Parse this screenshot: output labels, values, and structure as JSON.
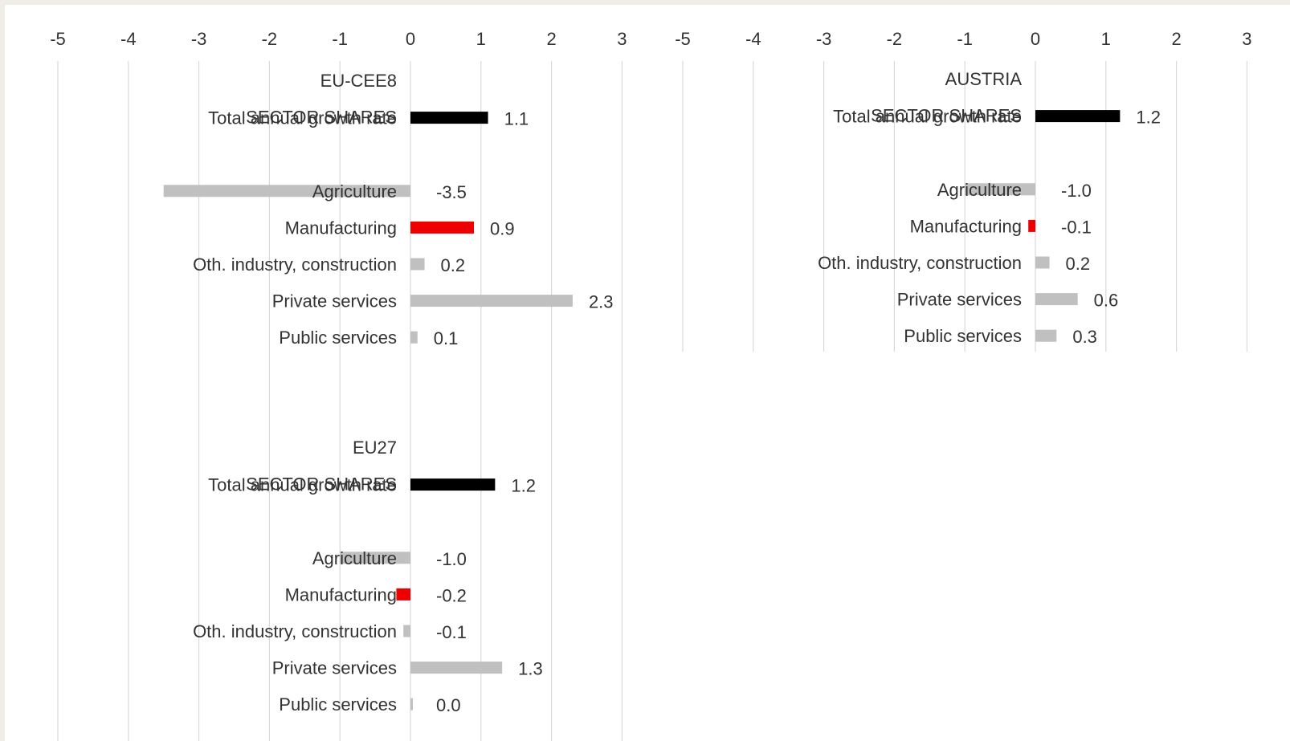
{
  "colors": {
    "total": "#000000",
    "manufacturing": "#ee0000",
    "sector": "#c0c0c0",
    "grid": "#d9d9d9",
    "text": "#333333",
    "background": "#efede6",
    "panel": "#ffffff"
  },
  "chart_data": [
    {
      "type": "bar",
      "orientation": "horizontal",
      "title": "EU-CEE8",
      "section_label": "SECTOR SHARES",
      "xlim": [
        -5,
        3
      ],
      "xticks": [
        "-5",
        "-4",
        "-3",
        "-2",
        "-1",
        "0",
        "1",
        "2",
        "3"
      ],
      "grid": true,
      "categories": [
        "Total annual growth rate",
        "Agriculture",
        "Manufacturing",
        "Oth. industry, construction",
        "Private services",
        "Public services"
      ],
      "values": [
        1.1,
        -3.5,
        0.9,
        0.2,
        2.3,
        0.1
      ],
      "labels": [
        "1.1",
        "-3.5",
        "0.9",
        "0.2",
        "2.3",
        "0.1"
      ],
      "bar_colors": [
        "total",
        "sector",
        "manufacturing",
        "sector",
        "sector",
        "sector"
      ]
    },
    {
      "type": "bar",
      "orientation": "horizontal",
      "title": "AUSTRIA",
      "section_label": "SECTOR SHARES",
      "xlim": [
        -5,
        3
      ],
      "xticks": [
        "-5",
        "-4",
        "-3",
        "-2",
        "-1",
        "0",
        "1",
        "2",
        "3"
      ],
      "grid": true,
      "categories": [
        "Total annual growth rate",
        "Agriculture",
        "Manufacturing",
        "Oth. industry, construction",
        "Private services",
        "Public services"
      ],
      "values": [
        1.2,
        -1.0,
        -0.1,
        0.2,
        0.6,
        0.3
      ],
      "labels": [
        "1.2",
        "-1.0",
        "-0.1",
        "0.2",
        "0.6",
        "0.3"
      ],
      "bar_colors": [
        "total",
        "sector",
        "manufacturing",
        "sector",
        "sector",
        "sector"
      ]
    },
    {
      "type": "bar",
      "orientation": "horizontal",
      "title": "EU27",
      "section_label": "SECTOR SHARES",
      "xlim": [
        -5,
        3
      ],
      "grid": true,
      "categories": [
        "Total annual growth rate",
        "Agriculture",
        "Manufacturing",
        "Oth. industry, construction",
        "Private services",
        "Public services"
      ],
      "values": [
        1.2,
        -1.0,
        -0.2,
        -0.1,
        1.3,
        0.0
      ],
      "labels": [
        "1.2",
        "-1.0",
        "-0.2",
        "-0.1",
        "1.3",
        "0.0"
      ],
      "bar_colors": [
        "total",
        "sector",
        "manufacturing",
        "sector",
        "sector",
        "sector"
      ]
    }
  ]
}
